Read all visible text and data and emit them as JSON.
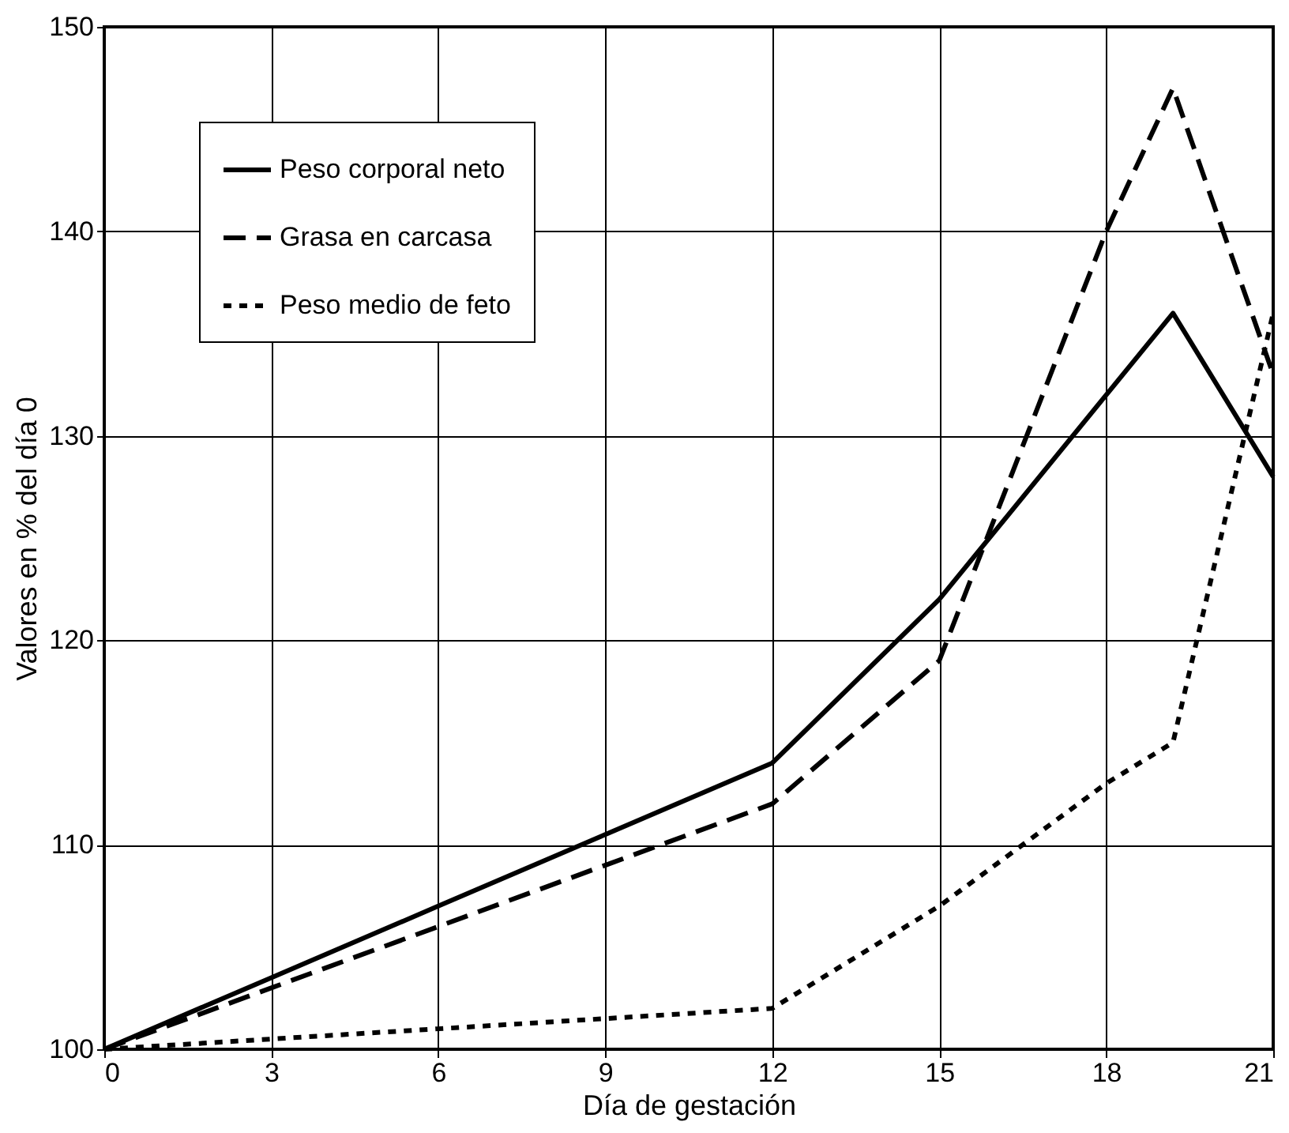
{
  "chart_data": {
    "type": "line",
    "xlabel": "Día de gestación",
    "ylabel": "Valores en % del día 0",
    "xlim": [
      0,
      21
    ],
    "ylim": [
      100,
      150
    ],
    "xticks": [
      0,
      3,
      6,
      9,
      12,
      15,
      18,
      21
    ],
    "yticks": [
      100,
      110,
      120,
      130,
      140,
      150
    ],
    "grid": true,
    "legend": "top left",
    "marker": "none",
    "series": [
      {
        "name": "Peso corporal neto",
        "color": "#000000",
        "line_style": "solid",
        "x": [
          0,
          3,
          6,
          9,
          12,
          15,
          19.2,
          21
        ],
        "values": [
          100,
          103.5,
          107,
          110.5,
          114,
          122,
          136,
          128
        ]
      },
      {
        "name": "Grasa en carcasa",
        "color": "#000000",
        "line_style": "dashed",
        "x": [
          0,
          3,
          6,
          9,
          12,
          15,
          16,
          18,
          19.2,
          21
        ],
        "values": [
          100,
          103,
          106,
          109,
          112,
          119,
          126,
          140,
          147,
          133
        ]
      },
      {
        "name": "Peso medio de feto",
        "color": "#000000",
        "line_style": "dotted",
        "x": [
          0,
          3,
          6,
          9,
          12,
          15,
          18,
          19.2,
          21
        ],
        "values": [
          100,
          100.5,
          101,
          101.5,
          102,
          107,
          113,
          115,
          136
        ]
      }
    ]
  }
}
